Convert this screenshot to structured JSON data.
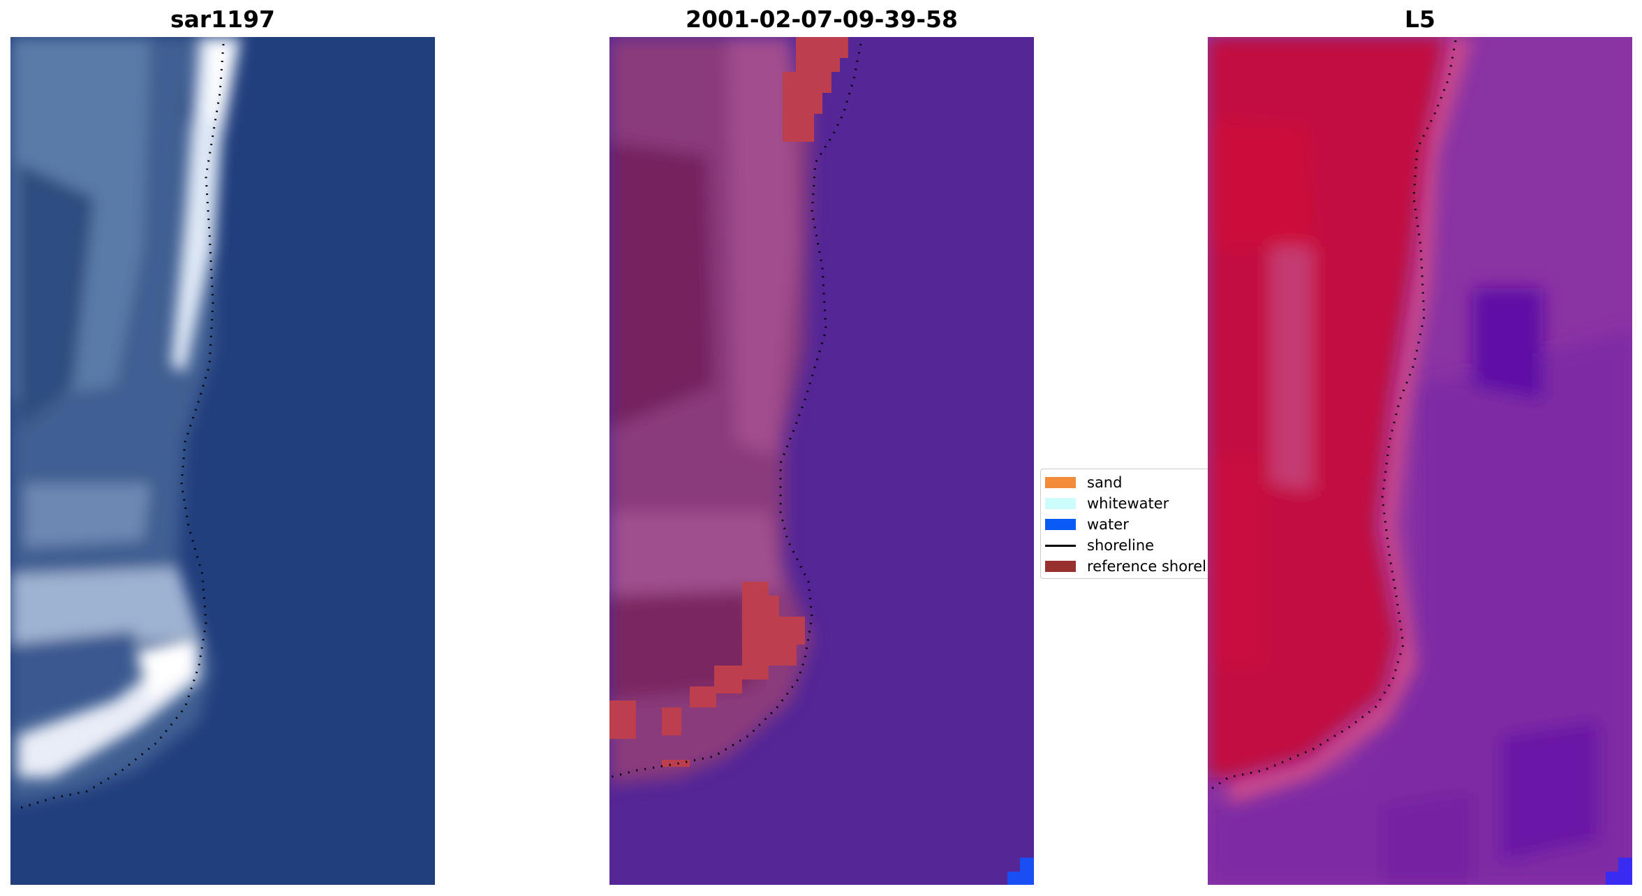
{
  "panels": [
    {
      "title": "sar1197"
    },
    {
      "title": "2001-02-07-09-39-58"
    },
    {
      "title": "L5"
    }
  ],
  "legend": {
    "items": [
      {
        "label": "sand",
        "color": "#f28c3a",
        "kind": "patch"
      },
      {
        "label": "whitewater",
        "color": "#ccfcfc",
        "kind": "patch"
      },
      {
        "label": "water",
        "color": "#0a5bf5",
        "kind": "patch"
      },
      {
        "label": "shoreline",
        "color": "#000000",
        "kind": "line"
      },
      {
        "label": "reference shoreline",
        "color": "#993030",
        "kind": "patch"
      }
    ]
  }
}
